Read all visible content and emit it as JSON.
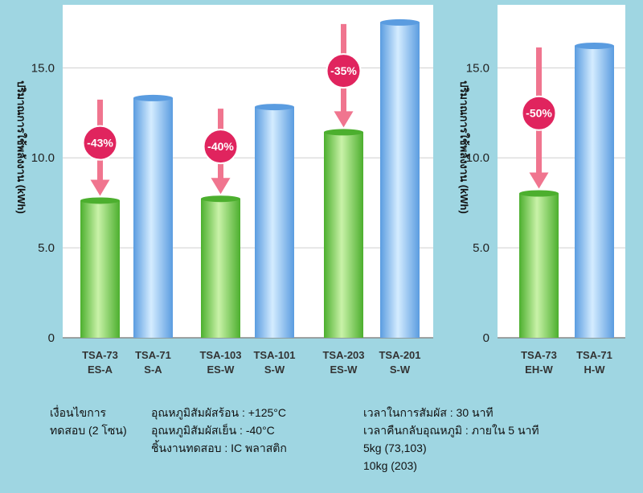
{
  "chart_data": [
    {
      "type": "bar",
      "ylabel": "ปริมาณการใช้พลังงาน (kWh)",
      "yticks": [
        "0",
        "5.0",
        "10.0",
        "15.0"
      ],
      "ylim": [
        0,
        18.5
      ],
      "categories": [
        {
          "line1": "TSA-73",
          "line2": "ES-A"
        },
        {
          "line1": "TSA-71",
          "line2": "S-A"
        },
        {
          "line1": "TSA-103",
          "line2": "ES-W"
        },
        {
          "line1": "TSA-101",
          "line2": "S-W"
        },
        {
          "line1": "TSA-203",
          "line2": "ES-W"
        },
        {
          "line1": "TSA-201",
          "line2": "S-W"
        }
      ],
      "values": [
        7.8,
        13.5,
        7.9,
        13.0,
        11.6,
        17.7
      ],
      "bar_colors": [
        "green",
        "blue",
        "green",
        "blue",
        "green",
        "blue"
      ],
      "annotations": [
        {
          "label": "-43%",
          "bar": 0,
          "from": 13.5
        },
        {
          "label": "-40%",
          "bar": 2,
          "from": 13.0
        },
        {
          "label": "-35%",
          "bar": 4,
          "from": 17.7
        }
      ]
    },
    {
      "type": "bar",
      "ylabel": "ปริมาณการใช้พลังงาน (kWh)",
      "yticks": [
        "0",
        "5.0",
        "10.0",
        "15.0"
      ],
      "ylim": [
        0,
        18.5
      ],
      "categories": [
        {
          "line1": "TSA-73",
          "line2": "EH-W"
        },
        {
          "line1": "TSA-71",
          "line2": "H-W"
        }
      ],
      "values": [
        8.2,
        16.4
      ],
      "bar_colors": [
        "green",
        "blue"
      ],
      "annotations": [
        {
          "label": "-50%",
          "bar": 0,
          "from": 16.4
        }
      ]
    }
  ],
  "colors": {
    "background": "#9fd6e2",
    "green_light": "#c9f2a8",
    "green_dark": "#4caf2e",
    "blue_light": "#d4ecff",
    "blue_dark": "#5a9ce0",
    "arrow": "#f0758f",
    "badge": "#e0245e"
  },
  "notes": {
    "condition_label_1": "เงื่อนไขการ",
    "condition_label_2": "ทดสอบ (2 โซน)",
    "hot_temp": "อุณหภูมิสัมผัสร้อน : +125°C",
    "cold_temp": "อุณหภูมิสัมผัสเย็น : -40°C",
    "test_piece": "ชิ้นงานทดสอบ : IC พลาสติก",
    "exposure_time": "เวลาในการสัมผัส :       30 นาที",
    "recovery_time": "เวลาคืนกลับอุณหภูมิ : ภายใน 5 นาที",
    "load_1": "5kg (73,103)",
    "load_2": "10kg (203)"
  }
}
